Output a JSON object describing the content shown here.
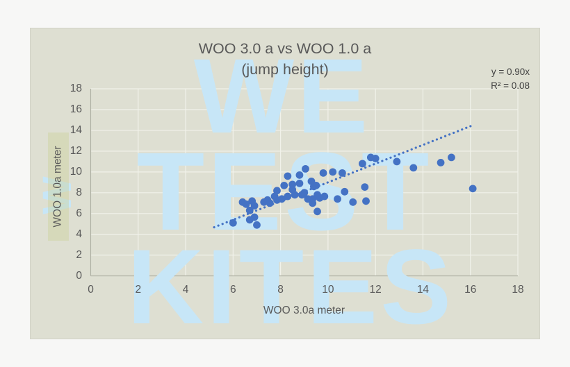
{
  "title": {
    "line1": "WOO 3.0 a vs WOO 1.0 a",
    "line2": "(jump height)"
  },
  "trendline_label": {
    "equation": "y = 0.90x",
    "r_squared": "R² = 0.08"
  },
  "watermark": {
    "lines": [
      "WE",
      "TEST",
      "KITES"
    ],
    "side_glyph": "W",
    "color": "#c7e6f7"
  },
  "colors": {
    "card_background": "#dedfd2",
    "page_background": "#f7f7f6",
    "point": "#4472c4",
    "gridline": "#f1f2ea",
    "axis_line": "#aeafa2",
    "text": "#595959"
  },
  "chart_data": {
    "type": "scatter",
    "title": "WOO 3.0 a vs WOO 1.0 a (jump height)",
    "xlabel": "WOO 3.0a meter",
    "ylabel": "WOO 1.0a meter",
    "xlim": [
      0,
      18
    ],
    "ylim": [
      0,
      18
    ],
    "x_ticks": [
      0,
      2,
      4,
      6,
      8,
      10,
      12,
      14,
      16,
      18
    ],
    "y_ticks": [
      0,
      2,
      4,
      6,
      8,
      10,
      12,
      14,
      16,
      18
    ],
    "grid": true,
    "legend": "none",
    "points": [
      [
        6.0,
        5.1
      ],
      [
        6.4,
        7.1
      ],
      [
        6.55,
        6.9
      ],
      [
        6.7,
        6.3
      ],
      [
        6.8,
        7.2
      ],
      [
        6.9,
        6.75
      ],
      [
        6.7,
        5.4
      ],
      [
        6.9,
        5.65
      ],
      [
        7.0,
        4.9
      ],
      [
        7.3,
        7.1
      ],
      [
        7.45,
        7.3
      ],
      [
        7.55,
        7.0
      ],
      [
        7.75,
        7.65
      ],
      [
        7.85,
        7.3
      ],
      [
        7.85,
        8.2
      ],
      [
        8.05,
        7.4
      ],
      [
        8.15,
        8.7
      ],
      [
        8.3,
        7.65
      ],
      [
        8.3,
        9.6
      ],
      [
        8.5,
        8.3
      ],
      [
        8.5,
        8.8
      ],
      [
        8.6,
        7.8
      ],
      [
        8.8,
        8.9
      ],
      [
        8.8,
        9.7
      ],
      [
        8.9,
        7.8
      ],
      [
        9.0,
        8.0
      ],
      [
        9.05,
        10.3
      ],
      [
        9.15,
        7.4
      ],
      [
        9.3,
        9.1
      ],
      [
        9.35,
        7.0
      ],
      [
        9.35,
        7.4
      ],
      [
        9.4,
        8.6
      ],
      [
        9.5,
        8.7
      ],
      [
        9.55,
        6.2
      ],
      [
        9.55,
        7.8
      ],
      [
        9.65,
        7.5
      ],
      [
        9.8,
        9.9
      ],
      [
        9.85,
        7.65
      ],
      [
        10.2,
        10.0
      ],
      [
        10.4,
        7.4
      ],
      [
        10.6,
        9.9
      ],
      [
        10.7,
        8.1
      ],
      [
        11.05,
        7.1
      ],
      [
        11.45,
        10.8
      ],
      [
        11.55,
        8.55
      ],
      [
        11.6,
        7.2
      ],
      [
        11.8,
        11.4
      ],
      [
        12.0,
        11.3
      ],
      [
        12.9,
        11.0
      ],
      [
        13.6,
        10.4
      ],
      [
        14.75,
        10.9
      ],
      [
        15.2,
        11.4
      ],
      [
        16.1,
        8.4
      ]
    ],
    "trendline": {
      "type": "linear",
      "slope": 0.9,
      "intercept": 0,
      "equation": "y = 0.90x",
      "r_squared": 0.08,
      "x_start": 5.2,
      "x_end": 16.1,
      "style": "dotted"
    }
  }
}
